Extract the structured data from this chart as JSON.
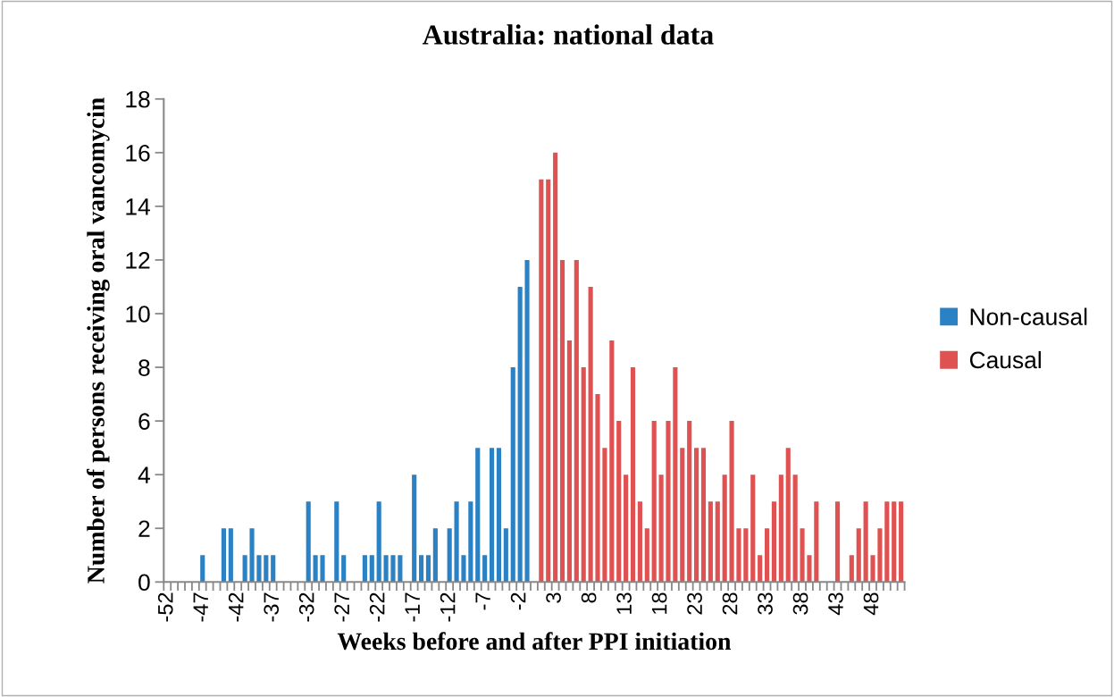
{
  "chart_data": {
    "type": "bar",
    "title": "Australia: national data",
    "xlabel": "Weeks before and after PPI initiation",
    "ylabel": "Number of persons receiving oral vancomycin",
    "categories": [
      "-52",
      null,
      null,
      null,
      null,
      "-47",
      null,
      null,
      null,
      null,
      "-42",
      null,
      null,
      null,
      null,
      "-37",
      null,
      null,
      null,
      null,
      "-32",
      null,
      null,
      null,
      null,
      "-27",
      null,
      null,
      null,
      null,
      "-22",
      null,
      null,
      null,
      null,
      "-17",
      null,
      null,
      null,
      null,
      "-12",
      null,
      null,
      null,
      null,
      "-7",
      null,
      null,
      null,
      null,
      "-2",
      null,
      null,
      null,
      null,
      "3",
      null,
      null,
      null,
      null,
      "8",
      null,
      null,
      null,
      null,
      "13",
      null,
      null,
      null,
      null,
      "18",
      null,
      null,
      null,
      null,
      "23",
      null,
      null,
      null,
      null,
      "28",
      null,
      null,
      null,
      null,
      "33",
      null,
      null,
      null,
      null,
      "38",
      null,
      null,
      null,
      null,
      "43",
      null,
      null,
      null,
      null,
      "48",
      null,
      null,
      null,
      null
    ],
    "series": [
      {
        "name": "Non-causal",
        "color": "#2a81c4",
        "values": [
          null,
          null,
          null,
          null,
          null,
          1,
          null,
          null,
          2,
          2,
          null,
          1,
          2,
          1,
          1,
          1,
          null,
          null,
          null,
          null,
          3,
          1,
          1,
          null,
          3,
          1,
          null,
          null,
          1,
          1,
          3,
          1,
          1,
          1,
          null,
          4,
          1,
          1,
          2,
          null,
          2,
          3,
          1,
          3,
          5,
          1,
          5,
          5,
          2,
          8,
          11,
          12,
          null,
          null,
          null,
          null,
          null,
          null,
          null,
          null,
          null,
          null,
          null,
          null,
          null,
          null,
          null,
          null,
          null,
          null,
          null,
          null,
          null,
          null,
          null,
          null,
          null,
          null,
          null,
          null,
          null,
          null,
          null,
          null,
          null,
          null,
          null,
          null,
          null,
          null,
          null,
          null,
          null,
          null,
          null,
          null,
          null,
          null,
          null,
          null,
          null,
          null,
          null,
          null,
          null
        ]
      },
      {
        "name": "Causal",
        "color": "#e05252",
        "values": [
          null,
          null,
          null,
          null,
          null,
          null,
          null,
          null,
          null,
          null,
          null,
          null,
          null,
          null,
          null,
          null,
          null,
          null,
          null,
          null,
          null,
          null,
          null,
          null,
          null,
          null,
          null,
          null,
          null,
          null,
          null,
          null,
          null,
          null,
          null,
          null,
          null,
          null,
          null,
          null,
          null,
          null,
          null,
          null,
          null,
          null,
          null,
          null,
          null,
          null,
          null,
          null,
          null,
          15,
          15,
          16,
          12,
          9,
          12,
          8,
          11,
          7,
          5,
          9,
          6,
          4,
          8,
          3,
          2,
          6,
          4,
          6,
          8,
          5,
          6,
          5,
          5,
          3,
          3,
          4,
          6,
          2,
          2,
          4,
          1,
          2,
          3,
          4,
          5,
          4,
          2,
          1,
          3,
          null,
          null,
          3,
          null,
          1,
          2,
          3,
          1,
          2,
          3,
          3,
          3
        ]
      }
    ],
    "ylim": [
      0,
      18
    ],
    "yticks": [
      0,
      2,
      4,
      6,
      8,
      10,
      12,
      14,
      16,
      18
    ],
    "legend": "right"
  }
}
